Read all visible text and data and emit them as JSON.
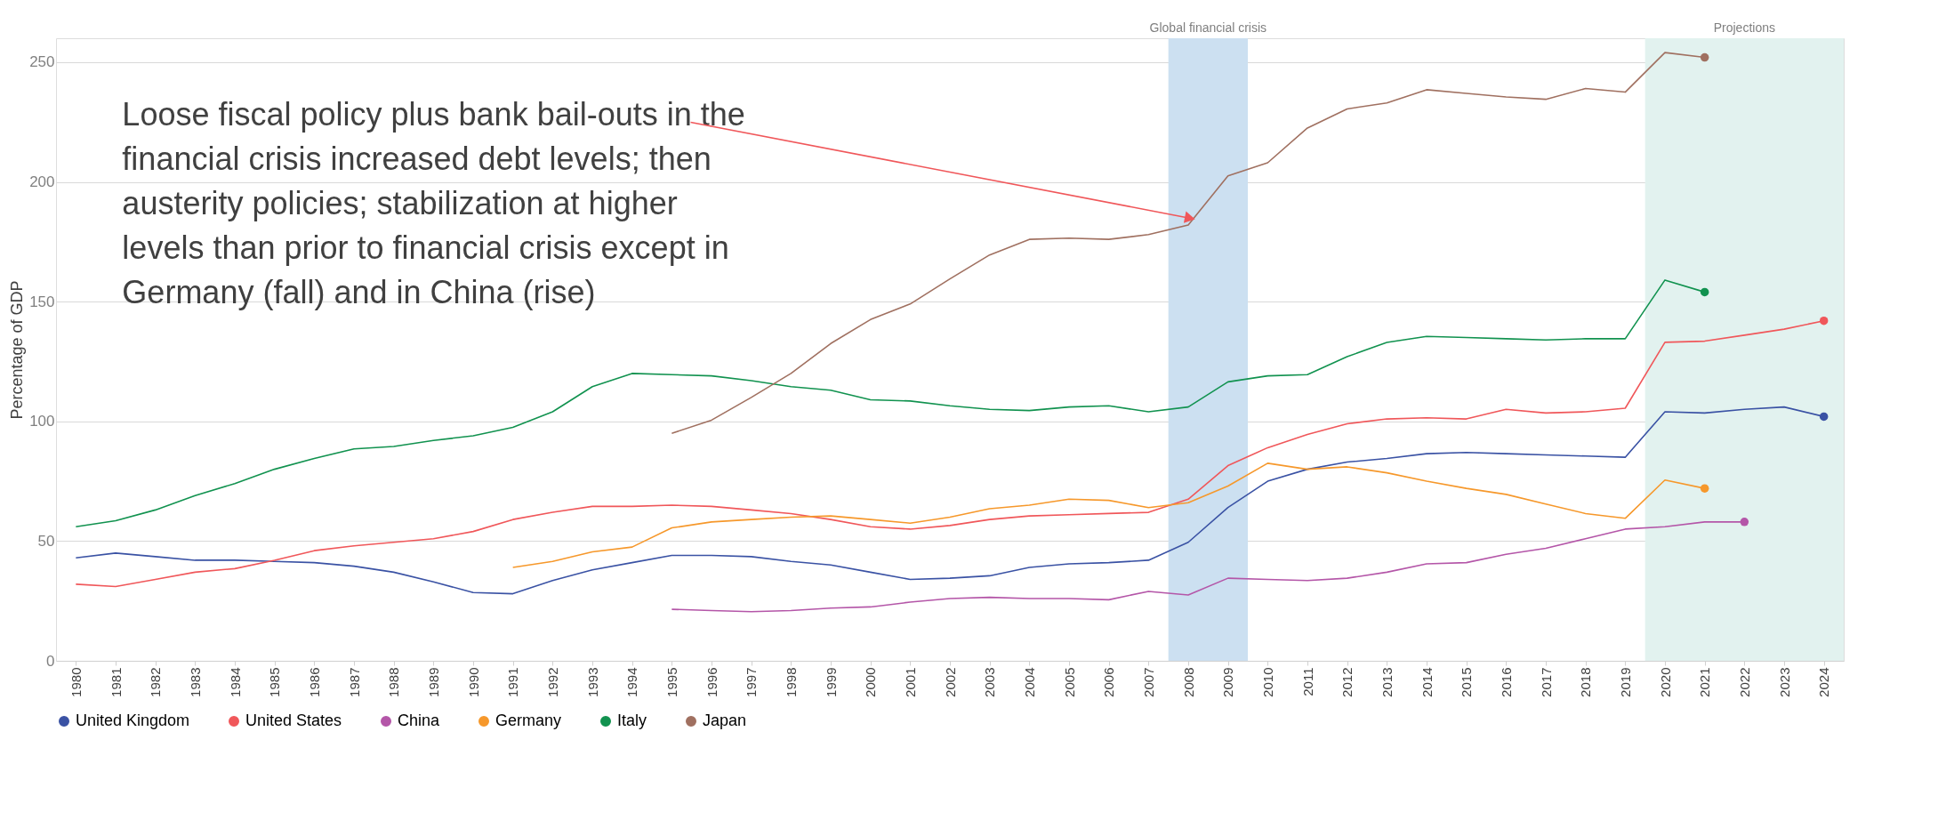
{
  "chart_data": {
    "type": "line",
    "ylabel": "Percentage of GDP",
    "categories": [
      "1980",
      "1981",
      "1982",
      "1983",
      "1984",
      "1985",
      "1986",
      "1987",
      "1988",
      "1989",
      "1990",
      "1991",
      "1992",
      "1993",
      "1994",
      "1995",
      "1996",
      "1997",
      "1998",
      "1999",
      "2000",
      "2001",
      "2002",
      "2003",
      "2004",
      "2005",
      "2006",
      "2007",
      "2008",
      "2009",
      "2010",
      "2011",
      "2012",
      "2013",
      "2014",
      "2015",
      "2016",
      "2017",
      "2018",
      "2019",
      "2020",
      "2021",
      "2022",
      "2023",
      "2024"
    ],
    "series": [
      {
        "name": "United Kingdom",
        "color": "#3a52a4",
        "values": [
          43,
          45,
          43.5,
          42,
          42,
          41.5,
          41,
          39.5,
          37,
          33,
          28.5,
          28,
          33.5,
          38,
          41,
          44,
          44,
          43.5,
          41.5,
          40,
          37,
          34,
          34.5,
          35.5,
          39,
          40.5,
          41,
          42,
          49.5,
          64,
          75,
          80,
          83,
          84.5,
          86.5,
          87,
          86.5,
          86,
          85.5,
          85,
          104,
          103.5,
          105,
          106,
          102
        ]
      },
      {
        "name": "United States",
        "color": "#f0575a",
        "values": [
          32,
          31,
          34,
          37,
          38.5,
          42,
          46,
          48,
          49.5,
          51,
          54,
          59,
          62,
          64.5,
          64.5,
          65,
          64.5,
          63,
          61.5,
          59,
          56,
          55,
          56.5,
          59,
          60.5,
          61,
          61.5,
          62,
          67.5,
          81.5,
          89,
          94.5,
          99,
          101,
          101.5,
          101,
          105,
          103.5,
          104,
          105.5,
          133,
          133.5,
          136,
          138.5,
          142
        ]
      },
      {
        "name": "China",
        "color": "#b456a8",
        "values": [
          null,
          null,
          null,
          null,
          null,
          null,
          null,
          null,
          null,
          null,
          null,
          null,
          null,
          null,
          null,
          21.5,
          21,
          20.5,
          21,
          22,
          22.5,
          24.5,
          26,
          26.5,
          26,
          26,
          25.5,
          29,
          27.5,
          34.5,
          34,
          33.5,
          34.5,
          37,
          40.5,
          41,
          44.5,
          47,
          51,
          55,
          56,
          58,
          58,
          null,
          null
        ]
      },
      {
        "name": "Germany",
        "color": "#f6982b",
        "values": [
          null,
          null,
          null,
          null,
          null,
          null,
          null,
          null,
          null,
          null,
          null,
          39,
          41.5,
          45.5,
          47.5,
          55.5,
          58,
          59,
          60,
          60.5,
          59,
          57.5,
          60,
          63.5,
          65,
          67.5,
          67,
          64,
          66,
          73,
          82.5,
          80,
          81,
          78.5,
          75,
          72,
          69.5,
          65.5,
          61.5,
          59.5,
          75.5,
          72,
          null,
          null,
          null
        ]
      },
      {
        "name": "Italy",
        "color": "#11924f",
        "values": [
          56,
          58.5,
          63,
          69,
          74,
          80,
          84.5,
          88.5,
          89.5,
          92,
          94,
          97.5,
          104,
          114.5,
          120,
          119.5,
          119,
          117,
          114.5,
          113,
          109,
          108.5,
          106.5,
          105,
          104.5,
          106,
          106.5,
          104,
          106,
          116.5,
          119,
          119.5,
          127,
          133,
          135.5,
          135,
          134.5,
          134,
          134.5,
          134.5,
          159,
          154,
          null,
          null,
          null
        ]
      },
      {
        "name": "Japan",
        "color": "#a07060",
        "values": [
          null,
          null,
          null,
          null,
          null,
          null,
          null,
          null,
          null,
          null,
          null,
          null,
          null,
          null,
          null,
          95,
          100.5,
          110,
          120,
          132.5,
          142.5,
          149,
          159.5,
          169.5,
          176,
          176.5,
          176,
          178,
          182,
          202.5,
          208,
          222.5,
          230.5,
          233,
          238.5,
          237,
          235.5,
          234.5,
          239,
          237.5,
          254,
          252,
          null,
          null,
          null
        ]
      }
    ],
    "ylim": [
      0,
      260
    ],
    "yticks": [
      0,
      50,
      100,
      150,
      200,
      250
    ],
    "grid": "y",
    "legend": "bottom",
    "line_style": "solid",
    "bands": [
      {
        "axis": "x",
        "from": "2008",
        "to": "2009",
        "label": "Global financial crisis",
        "color": "#cce0f1"
      },
      {
        "axis": "x",
        "from": "2020",
        "to": "2024",
        "label": "Projections",
        "color": "#e2f2ef"
      }
    ],
    "annotations": [
      {
        "text": "Loose fiscal policy plus bank bail-outs in the financial crisis increased debt levels; then austerity policies; stabilization at higher levels than prior to financial crisis except in Germany (fall) and in China (rise)",
        "x": "2008",
        "y": 185
      }
    ]
  }
}
